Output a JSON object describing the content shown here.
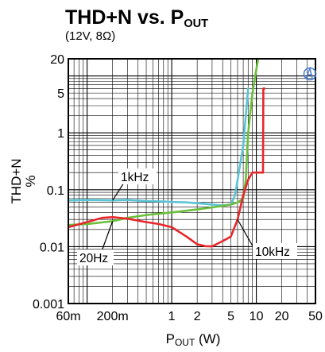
{
  "chart_data": {
    "type": "line",
    "title": "THD+N vs. P",
    "title_subscript": "OUT",
    "subtitle": "(12V, 8Ω)",
    "xlabel": "P",
    "xlabel_subscript": "OUT",
    "xlabel_unit": " (W)",
    "ylabel_line1": "THD+N",
    "ylabel_line2": "%",
    "x_scale": "log",
    "y_scale": "log",
    "xlim": [
      0.06,
      50
    ],
    "ylim": [
      0.001,
      20
    ],
    "x_ticks": [
      {
        "value": 0.06,
        "label": "60m"
      },
      {
        "value": 0.2,
        "label": "200m"
      },
      {
        "value": 1,
        "label": "1"
      },
      {
        "value": 2,
        "label": "2"
      },
      {
        "value": 5,
        "label": "5"
      },
      {
        "value": 10,
        "label": "10"
      },
      {
        "value": 20,
        "label": "20"
      },
      {
        "value": 50,
        "label": "50"
      }
    ],
    "y_ticks": [
      {
        "value": 0.001,
        "label": "0.001"
      },
      {
        "value": 0.01,
        "label": "0.01"
      },
      {
        "value": 0.1,
        "label": "0.1"
      },
      {
        "value": 1,
        "label": "1"
      },
      {
        "value": 5,
        "label": "5"
      },
      {
        "value": 20,
        "label": "20"
      }
    ],
    "grid": true,
    "legend": "none",
    "series": [
      {
        "name": "1kHz",
        "color": "#5bc4d6",
        "points": [
          [
            0.06,
            0.065
          ],
          [
            0.1,
            0.066
          ],
          [
            0.2,
            0.065
          ],
          [
            0.3,
            0.066
          ],
          [
            0.5,
            0.063
          ],
          [
            0.8,
            0.062
          ],
          [
            1,
            0.061
          ],
          [
            1.5,
            0.06
          ],
          [
            2,
            0.058
          ],
          [
            3,
            0.055
          ],
          [
            4,
            0.053
          ],
          [
            5,
            0.055
          ],
          [
            5.6,
            0.08
          ],
          [
            6.2,
            0.2
          ],
          [
            7,
            0.6
          ],
          [
            7.5,
            2
          ],
          [
            8,
            6
          ]
        ]
      },
      {
        "name": "20Hz",
        "color": "#6abf3b",
        "points": [
          [
            0.06,
            0.024
          ],
          [
            0.1,
            0.025
          ],
          [
            0.2,
            0.028
          ],
          [
            0.3,
            0.032
          ],
          [
            0.5,
            0.036
          ],
          [
            1,
            0.04
          ],
          [
            2,
            0.045
          ],
          [
            3,
            0.049
          ],
          [
            4,
            0.052
          ],
          [
            5,
            0.055
          ],
          [
            6,
            0.06
          ],
          [
            7,
            0.07
          ],
          [
            7.5,
            0.15
          ],
          [
            8,
            1
          ],
          [
            9,
            5
          ],
          [
            10.5,
            20
          ]
        ]
      },
      {
        "name": "10kHz",
        "color": "#e8262b",
        "points": [
          [
            0.06,
            0.022
          ],
          [
            0.1,
            0.027
          ],
          [
            0.15,
            0.032
          ],
          [
            0.2,
            0.033
          ],
          [
            0.3,
            0.031
          ],
          [
            0.5,
            0.027
          ],
          [
            0.7,
            0.025
          ],
          [
            1,
            0.022
          ],
          [
            1.5,
            0.015
          ],
          [
            2,
            0.011
          ],
          [
            2.5,
            0.0102
          ],
          [
            3,
            0.0101
          ],
          [
            4,
            0.0125
          ],
          [
            5,
            0.015
          ],
          [
            6,
            0.03
          ],
          [
            7,
            0.08
          ],
          [
            8,
            0.15
          ],
          [
            9,
            0.2
          ],
          [
            11,
            0.2
          ],
          [
            12,
            0.2
          ],
          [
            12.1,
            6
          ],
          [
            12.5,
            6
          ]
        ]
      }
    ],
    "annotations": [
      {
        "text": "1kHz",
        "series": "1kHz"
      },
      {
        "text": "20Hz",
        "series": "20Hz"
      },
      {
        "text": "10kHz",
        "series": "10kHz"
      }
    ]
  }
}
